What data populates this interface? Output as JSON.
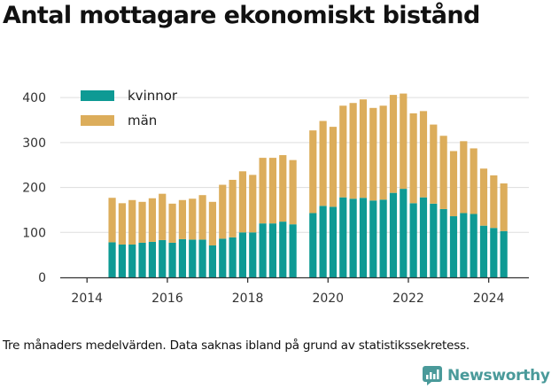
{
  "title": "Antal mottagare ekonomiskt bistånd",
  "footnote": "Tre månaders medelvärden. Data saknas ibland på grund av statistikssekretess.",
  "logo": {
    "text": "Newsworthy",
    "icon": "newsworthy-chart-icon",
    "color": "#4a9a9a"
  },
  "colors": {
    "kvinnor": "#0e9a94",
    "man": "#dcad5b",
    "axis": "#333333",
    "grid": "#dddddd"
  },
  "chart_data": {
    "type": "bar",
    "stacked": true,
    "x_axis": {
      "ticks": [
        "2014",
        "2016",
        "2018",
        "2020",
        "2022",
        "2024"
      ],
      "range": [
        "2013-05",
        "2025-01"
      ]
    },
    "y_axis": {
      "ticks": [
        "0",
        "100",
        "200",
        "300",
        "400"
      ],
      "range": [
        0,
        420
      ]
    },
    "grid": true,
    "legend_position": "top-left",
    "categories": [
      "2014-Q3",
      "2014-Q4",
      "2015-Q1",
      "2015-Q2",
      "2015-Q3",
      "2015-Q4",
      "2016-Q1",
      "2016-Q2",
      "2016-Q3",
      "2016-Q4",
      "2017-Q1",
      "2017-Q2",
      "2017-Q3",
      "2017-Q4",
      "2018-Q1",
      "2018-Q2",
      "2018-Q3",
      "2018-Q4",
      "2019-Q1",
      "2019-Q2",
      "2019-Q3",
      "2019-Q4",
      "2020-Q1",
      "2020-Q2",
      "2020-Q3",
      "2020-Q4",
      "2021-Q1",
      "2021-Q2",
      "2021-Q3",
      "2021-Q4",
      "2022-Q1",
      "2022-Q2",
      "2022-Q3",
      "2022-Q4",
      "2023-Q1",
      "2023-Q2",
      "2023-Q3",
      "2023-Q4",
      "2024-Q1",
      "2024-Q2"
    ],
    "series": [
      {
        "name": "kvinnor",
        "values": [
          78,
          73,
          73,
          77,
          79,
          83,
          77,
          85,
          84,
          84,
          71,
          86,
          89,
          100,
          100,
          120,
          120,
          124,
          118,
          null,
          143,
          159,
          157,
          178,
          175,
          177,
          171,
          173,
          188,
          197,
          165,
          178,
          164,
          152,
          136,
          143,
          141,
          115,
          110,
          103
        ]
      },
      {
        "name": "män",
        "values": [
          99,
          92,
          99,
          91,
          97,
          103,
          87,
          87,
          91,
          99,
          97,
          120,
          128,
          136,
          128,
          146,
          146,
          148,
          143,
          null,
          184,
          189,
          178,
          204,
          213,
          219,
          206,
          209,
          218,
          212,
          200,
          192,
          176,
          163,
          145,
          160,
          146,
          127,
          117,
          106
        ]
      }
    ]
  }
}
